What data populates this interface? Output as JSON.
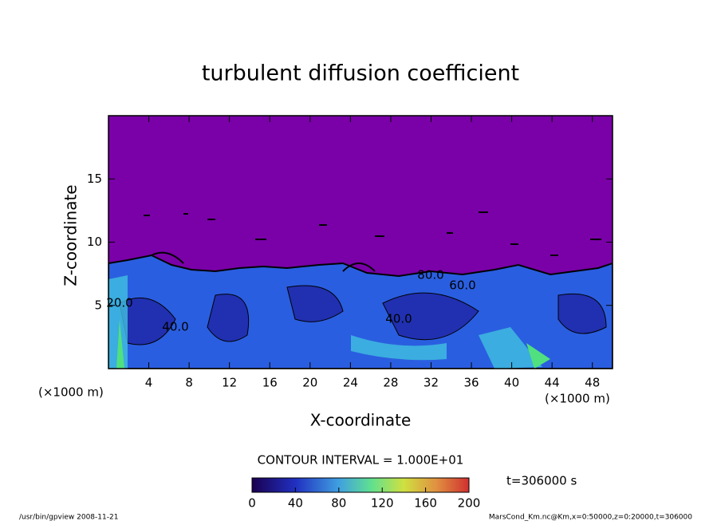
{
  "chart_data": {
    "type": "contour",
    "title": "turbulent diffusion coefficient",
    "xlabel": "X-coordinate",
    "ylabel": "Z-coordinate",
    "xunit": "(×1000 m)",
    "yunit": "(×1000 m)",
    "xlim": [
      0,
      50
    ],
    "ylim": [
      0,
      20
    ],
    "xticks": [
      4,
      8,
      12,
      16,
      20,
      24,
      28,
      32,
      36,
      40,
      44,
      48
    ],
    "yticks": [
      5,
      10,
      15
    ],
    "contour_labels": [
      "40.0",
      "60.0",
      "80.0",
      "40.0",
      "20.0"
    ],
    "contour_interval": "CONTOUR INTERVAL = 1.000E+01",
    "time_label": "t=306000 s",
    "colorbar": {
      "lim": [
        0,
        200
      ],
      "ticks": [
        0,
        40,
        80,
        120,
        160,
        200
      ]
    },
    "footer_left": "/usr/bin/gpview   2008-11-21",
    "footer_right": "MarsCond_Km.nc@Km,x=0:50000,z=0:20000,t=306000"
  }
}
